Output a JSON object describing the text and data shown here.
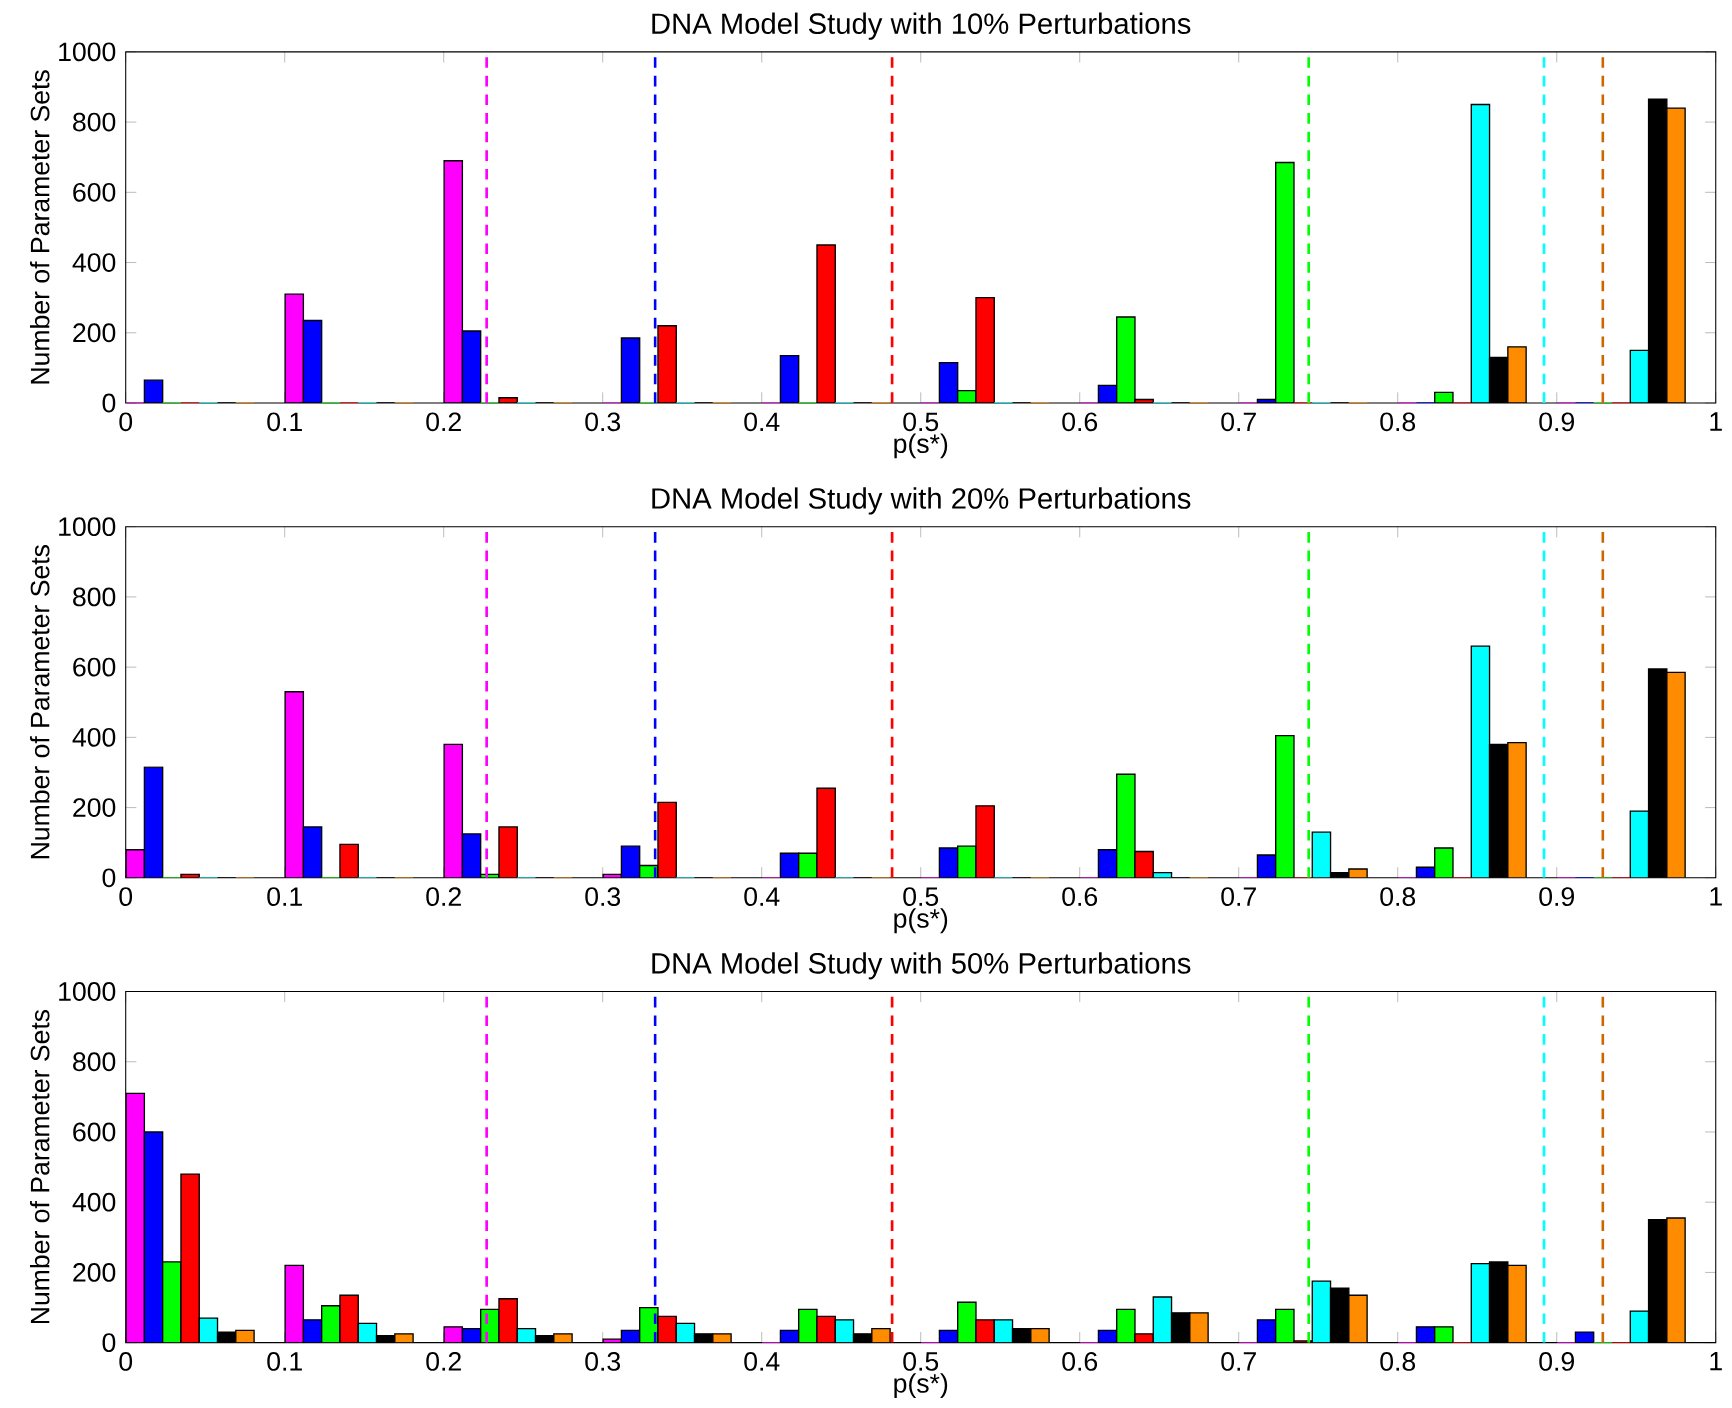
{
  "chart_data": [
    {
      "type": "bar",
      "title": "DNA Model Study with 10% Perturbations",
      "xlabel": "p(s*)",
      "ylabel": "Number of Parameter Sets",
      "xlim": [
        0,
        1
      ],
      "ylim": [
        0,
        1000
      ],
      "xticks": [
        0,
        0.1,
        0.2,
        0.3,
        0.4,
        0.5,
        0.6,
        0.7,
        0.8,
        0.9,
        1
      ],
      "yticks": [
        0,
        200,
        400,
        600,
        800,
        1000
      ],
      "grid": false,
      "series": [
        {
          "color": "#ff00ff",
          "x": [
            0.006,
            0.106,
            0.206,
            0.306,
            0.406,
            0.506,
            0.606,
            0.706,
            0.806,
            0.906
          ],
          "values": [
            0,
            310,
            690,
            0,
            0,
            0,
            0,
            0,
            0,
            0
          ]
        },
        {
          "color": "#0000ff",
          "x": [
            0.0175,
            0.1175,
            0.2175,
            0.3175,
            0.4175,
            0.5175,
            0.6175,
            0.7175,
            0.8175,
            0.9175
          ],
          "values": [
            65,
            235,
            205,
            185,
            135,
            115,
            50,
            10,
            0,
            0
          ]
        },
        {
          "color": "#00ff00",
          "x": [
            0.029,
            0.129,
            0.229,
            0.329,
            0.429,
            0.529,
            0.629,
            0.729,
            0.829,
            0.929
          ],
          "values": [
            0,
            0,
            0,
            0,
            0,
            35,
            245,
            685,
            30,
            0
          ]
        },
        {
          "color": "#ff0000",
          "x": [
            0.0405,
            0.1405,
            0.2405,
            0.3405,
            0.4405,
            0.5405,
            0.6405,
            0.7405,
            0.8405,
            0.9405
          ],
          "values": [
            0,
            0,
            15,
            220,
            450,
            300,
            10,
            0,
            0,
            0
          ]
        },
        {
          "color": "#00ffff",
          "x": [
            0.052,
            0.152,
            0.252,
            0.352,
            0.452,
            0.552,
            0.652,
            0.752,
            0.852,
            0.952
          ],
          "values": [
            0,
            0,
            0,
            0,
            0,
            0,
            0,
            0,
            850,
            150
          ]
        },
        {
          "color": "#000000",
          "x": [
            0.0635,
            0.1635,
            0.2635,
            0.3635,
            0.4635,
            0.5635,
            0.6635,
            0.7635,
            0.8635,
            0.9635
          ],
          "values": [
            0,
            0,
            0,
            0,
            0,
            0,
            0,
            0,
            130,
            865
          ]
        },
        {
          "color": "#ff8c00",
          "x": [
            0.075,
            0.175,
            0.275,
            0.375,
            0.475,
            0.575,
            0.675,
            0.775,
            0.875,
            0.975
          ],
          "values": [
            0,
            0,
            0,
            0,
            0,
            0,
            0,
            0,
            160,
            840
          ]
        }
      ],
      "ref_lines": [
        {
          "axis": "x",
          "value": 0.227,
          "color": "#ff00ff",
          "line_style": "dashed"
        },
        {
          "axis": "x",
          "value": 0.333,
          "color": "#0000ff",
          "line_style": "dashed"
        },
        {
          "axis": "x",
          "value": 0.482,
          "color": "#ff0000",
          "line_style": "dashed"
        },
        {
          "axis": "x",
          "value": 0.744,
          "color": "#00ff00",
          "line_style": "dashed"
        },
        {
          "axis": "x",
          "value": 0.892,
          "color": "#00ffff",
          "line_style": "dashed"
        },
        {
          "axis": "x",
          "value": 0.929,
          "color": "#cc6600",
          "line_style": "dashed"
        }
      ]
    },
    {
      "type": "bar",
      "title": "DNA Model Study with 20% Perturbations",
      "xlabel": "p(s*)",
      "ylabel": "Number of Parameter Sets",
      "xlim": [
        0,
        1
      ],
      "ylim": [
        0,
        1000
      ],
      "xticks": [
        0,
        0.1,
        0.2,
        0.3,
        0.4,
        0.5,
        0.6,
        0.7,
        0.8,
        0.9,
        1
      ],
      "yticks": [
        0,
        200,
        400,
        600,
        800,
        1000
      ],
      "grid": false,
      "series": [
        {
          "color": "#ff00ff",
          "x": [
            0.006,
            0.106,
            0.206,
            0.306,
            0.406,
            0.506,
            0.606,
            0.706,
            0.806,
            0.906
          ],
          "values": [
            80,
            530,
            380,
            10,
            0,
            0,
            0,
            0,
            0,
            0
          ]
        },
        {
          "color": "#0000ff",
          "x": [
            0.0175,
            0.1175,
            0.2175,
            0.3175,
            0.4175,
            0.5175,
            0.6175,
            0.7175,
            0.8175,
            0.9175
          ],
          "values": [
            315,
            145,
            125,
            90,
            70,
            85,
            80,
            65,
            30,
            0
          ]
        },
        {
          "color": "#00ff00",
          "x": [
            0.029,
            0.129,
            0.229,
            0.329,
            0.429,
            0.529,
            0.629,
            0.729,
            0.829,
            0.929
          ],
          "values": [
            0,
            0,
            10,
            35,
            70,
            90,
            295,
            405,
            85,
            0
          ]
        },
        {
          "color": "#ff0000",
          "x": [
            0.0405,
            0.1405,
            0.2405,
            0.3405,
            0.4405,
            0.5405,
            0.6405,
            0.7405,
            0.8405,
            0.9405
          ],
          "values": [
            10,
            95,
            145,
            215,
            255,
            205,
            75,
            0,
            0,
            0
          ]
        },
        {
          "color": "#00ffff",
          "x": [
            0.052,
            0.152,
            0.252,
            0.352,
            0.452,
            0.552,
            0.652,
            0.752,
            0.852,
            0.952
          ],
          "values": [
            0,
            0,
            0,
            0,
            0,
            0,
            15,
            130,
            660,
            190
          ]
        },
        {
          "color": "#000000",
          "x": [
            0.0635,
            0.1635,
            0.2635,
            0.3635,
            0.4635,
            0.5635,
            0.6635,
            0.7635,
            0.8635,
            0.9635
          ],
          "values": [
            0,
            0,
            0,
            0,
            0,
            0,
            0,
            15,
            380,
            595
          ]
        },
        {
          "color": "#ff8c00",
          "x": [
            0.075,
            0.175,
            0.275,
            0.375,
            0.475,
            0.575,
            0.675,
            0.775,
            0.875,
            0.975
          ],
          "values": [
            0,
            0,
            0,
            0,
            0,
            0,
            0,
            25,
            385,
            585
          ]
        }
      ],
      "ref_lines": [
        {
          "axis": "x",
          "value": 0.227,
          "color": "#ff00ff",
          "line_style": "dashed"
        },
        {
          "axis": "x",
          "value": 0.333,
          "color": "#0000ff",
          "line_style": "dashed"
        },
        {
          "axis": "x",
          "value": 0.482,
          "color": "#ff0000",
          "line_style": "dashed"
        },
        {
          "axis": "x",
          "value": 0.744,
          "color": "#00ff00",
          "line_style": "dashed"
        },
        {
          "axis": "x",
          "value": 0.892,
          "color": "#00ffff",
          "line_style": "dashed"
        },
        {
          "axis": "x",
          "value": 0.929,
          "color": "#cc6600",
          "line_style": "dashed"
        }
      ]
    },
    {
      "type": "bar",
      "title": "DNA Model Study with 50% Perturbations",
      "xlabel": "p(s*)",
      "ylabel": "Number of Parameter Sets",
      "xlim": [
        0,
        1
      ],
      "ylim": [
        0,
        1000
      ],
      "xticks": [
        0,
        0.1,
        0.2,
        0.3,
        0.4,
        0.5,
        0.6,
        0.7,
        0.8,
        0.9,
        1
      ],
      "yticks": [
        0,
        200,
        400,
        600,
        800,
        1000
      ],
      "grid": false,
      "series": [
        {
          "color": "#ff00ff",
          "x": [
            0.006,
            0.106,
            0.206,
            0.306,
            0.406,
            0.506,
            0.606,
            0.706,
            0.806,
            0.906
          ],
          "values": [
            710,
            220,
            45,
            10,
            0,
            0,
            0,
            0,
            0,
            0
          ]
        },
        {
          "color": "#0000ff",
          "x": [
            0.0175,
            0.1175,
            0.2175,
            0.3175,
            0.4175,
            0.5175,
            0.6175,
            0.7175,
            0.8175,
            0.9175
          ],
          "values": [
            600,
            65,
            40,
            35,
            35,
            35,
            35,
            65,
            45,
            30
          ]
        },
        {
          "color": "#00ff00",
          "x": [
            0.029,
            0.129,
            0.229,
            0.329,
            0.429,
            0.529,
            0.629,
            0.729,
            0.829,
            0.929
          ],
          "values": [
            230,
            105,
            95,
            100,
            95,
            115,
            95,
            95,
            45,
            0
          ]
        },
        {
          "color": "#ff0000",
          "x": [
            0.0405,
            0.1405,
            0.2405,
            0.3405,
            0.4405,
            0.5405,
            0.6405,
            0.7405,
            0.8405,
            0.9405
          ],
          "values": [
            480,
            135,
            125,
            75,
            75,
            65,
            25,
            5,
            0,
            0
          ]
        },
        {
          "color": "#00ffff",
          "x": [
            0.052,
            0.152,
            0.252,
            0.352,
            0.452,
            0.552,
            0.652,
            0.752,
            0.852,
            0.952
          ],
          "values": [
            70,
            55,
            40,
            55,
            65,
            65,
            130,
            175,
            225,
            90
          ]
        },
        {
          "color": "#000000",
          "x": [
            0.0635,
            0.1635,
            0.2635,
            0.3635,
            0.4635,
            0.5635,
            0.6635,
            0.7635,
            0.8635,
            0.9635
          ],
          "values": [
            30,
            20,
            20,
            25,
            25,
            40,
            85,
            155,
            230,
            350
          ]
        },
        {
          "color": "#ff8c00",
          "x": [
            0.075,
            0.175,
            0.275,
            0.375,
            0.475,
            0.575,
            0.675,
            0.775,
            0.875,
            0.975
          ],
          "values": [
            35,
            25,
            25,
            25,
            40,
            40,
            85,
            135,
            220,
            355
          ]
        }
      ],
      "ref_lines": [
        {
          "axis": "x",
          "value": 0.227,
          "color": "#ff00ff",
          "line_style": "dashed"
        },
        {
          "axis": "x",
          "value": 0.333,
          "color": "#0000ff",
          "line_style": "dashed"
        },
        {
          "axis": "x",
          "value": 0.482,
          "color": "#ff0000",
          "line_style": "dashed"
        },
        {
          "axis": "x",
          "value": 0.744,
          "color": "#00ff00",
          "line_style": "dashed"
        },
        {
          "axis": "x",
          "value": 0.892,
          "color": "#00ffff",
          "line_style": "dashed"
        },
        {
          "axis": "x",
          "value": 0.929,
          "color": "#cc6600",
          "line_style": "dashed"
        }
      ]
    }
  ]
}
